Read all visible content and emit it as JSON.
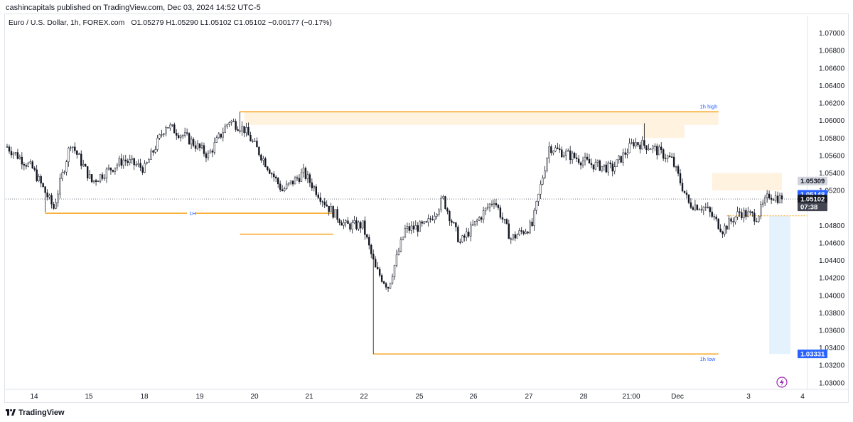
{
  "header": {
    "publisher_text": "cashincapitals published on TradingView.com, Dec 03, 2024 14:52 UTC-5"
  },
  "legend": {
    "symbol": "Euro / U.S. Dollar, 1h, FOREX.com",
    "ohlc": "O1.05279  H1.05290  L1.05102  C1.05102  −0.00177 (−0.17%)"
  },
  "footer": {
    "brand": "TradingView",
    "logo_icon": "tradingview-logo-icon"
  },
  "colors": {
    "bull": "#131722",
    "bear": "#131722",
    "level_line": "#f7a21b",
    "zone": "#fff3e0",
    "projection": "#e3f2fd",
    "text_blue": "#2962ff",
    "price_tag_dark": "#131722",
    "price_tag_blue": "#2962ff",
    "price_tag_gray": "#434651",
    "low_tag": "#2962ff",
    "lightning": "#9c27b0"
  },
  "chart_data": {
    "type": "candlestick",
    "symbol": "EURUSD",
    "timeframe": "1h",
    "ylim": [
      1.0295,
      1.072
    ],
    "y_ticks": [
      "1.07000",
      "1.06800",
      "1.06600",
      "1.06400",
      "1.06200",
      "1.06000",
      "1.05800",
      "1.05600",
      "1.05400",
      "1.05200",
      "1.04800",
      "1.04600",
      "1.04400",
      "1.04200",
      "1.04000",
      "1.03800",
      "1.03600",
      "1.03400",
      "1.03200",
      "1.03000"
    ],
    "x_tick_labels": [
      "14",
      "15",
      "18",
      "19",
      "20",
      "21",
      "22",
      "25",
      "26",
      "27",
      "28",
      "21:00",
      "Dec",
      "3",
      "4"
    ],
    "anchors": [
      {
        "i": 0,
        "p": 1.057
      },
      {
        "i": 12,
        "p": 1.0545
      },
      {
        "i": 22,
        "p": 1.05
      },
      {
        "i": 30,
        "p": 1.0575
      },
      {
        "i": 40,
        "p": 1.053
      },
      {
        "i": 55,
        "p": 1.0555
      },
      {
        "i": 65,
        "p": 1.0545
      },
      {
        "i": 75,
        "p": 1.0595
      },
      {
        "i": 85,
        "p": 1.058
      },
      {
        "i": 95,
        "p": 1.056
      },
      {
        "i": 105,
        "p": 1.06
      },
      {
        "i": 112,
        "p": 1.059
      },
      {
        "i": 120,
        "p": 1.056
      },
      {
        "i": 130,
        "p": 1.052
      },
      {
        "i": 140,
        "p": 1.054
      },
      {
        "i": 152,
        "p": 1.05
      },
      {
        "i": 160,
        "p": 1.048
      },
      {
        "i": 168,
        "p": 1.048
      },
      {
        "i": 174,
        "p": 1.043
      },
      {
        "i": 180,
        "p": 1.041
      },
      {
        "i": 188,
        "p": 1.0475
      },
      {
        "i": 198,
        "p": 1.048
      },
      {
        "i": 206,
        "p": 1.051
      },
      {
        "i": 214,
        "p": 1.046
      },
      {
        "i": 222,
        "p": 1.0485
      },
      {
        "i": 230,
        "p": 1.051
      },
      {
        "i": 238,
        "p": 1.0465
      },
      {
        "i": 248,
        "p": 1.048
      },
      {
        "i": 256,
        "p": 1.057
      },
      {
        "i": 266,
        "p": 1.056
      },
      {
        "i": 276,
        "p": 1.055
      },
      {
        "i": 286,
        "p": 1.0545
      },
      {
        "i": 296,
        "p": 1.0575
      },
      {
        "i": 304,
        "p": 1.057
      },
      {
        "i": 314,
        "p": 1.0555
      },
      {
        "i": 322,
        "p": 1.0505
      },
      {
        "i": 330,
        "p": 1.05
      },
      {
        "i": 338,
        "p": 1.0475
      },
      {
        "i": 346,
        "p": 1.0495
      },
      {
        "i": 354,
        "p": 1.049
      },
      {
        "i": 360,
        "p": 1.0515
      },
      {
        "i": 366,
        "p": 1.051
      }
    ],
    "notable_points": [
      {
        "i": 18,
        "low": 1.0495
      },
      {
        "i": 110,
        "high": 1.061
      },
      {
        "i": 173,
        "low": 1.0333
      },
      {
        "i": 301,
        "high": 1.0597
      }
    ],
    "last_close": 1.05102,
    "levels": [
      {
        "name": "1h high",
        "price": 1.061,
        "from_i": 110,
        "to_i": 336
      },
      {
        "name": "1H",
        "price": 1.0494,
        "from_i": 18,
        "to_i": 154
      },
      {
        "name": "",
        "price": 1.047,
        "from_i": 110,
        "to_i": 154
      },
      {
        "name": "1h low",
        "price": 1.0333,
        "from_i": 173,
        "to_i": 336
      },
      {
        "name": "",
        "price": 1.0491,
        "from_i": 340,
        "to_i": 378,
        "dotted": true
      }
    ],
    "zones": [
      {
        "from_i": 112,
        "to_i": 336,
        "top": 1.061,
        "bottom": 1.0595
      },
      {
        "from_i": 300,
        "to_i": 320,
        "top": 1.0595,
        "bottom": 1.058
      },
      {
        "from_i": 333,
        "to_i": 366,
        "top": 1.054,
        "bottom": 1.052
      }
    ],
    "projection": {
      "from_i": 360,
      "to_i": 370,
      "top": 1.0491,
      "bottom": 1.0333
    },
    "price_tags": [
      {
        "value": "1.05309",
        "price": 1.05309,
        "style": "gray-light"
      },
      {
        "value": "1.05148",
        "price": 1.05148,
        "style": "blue"
      },
      {
        "value": "1.05102",
        "price": 1.05102,
        "style": "dark"
      },
      {
        "value": "07:38",
        "price": 1.05102,
        "style": "dark-sub"
      },
      {
        "value": "1.03331",
        "price": 1.03331,
        "style": "blue"
      }
    ]
  }
}
